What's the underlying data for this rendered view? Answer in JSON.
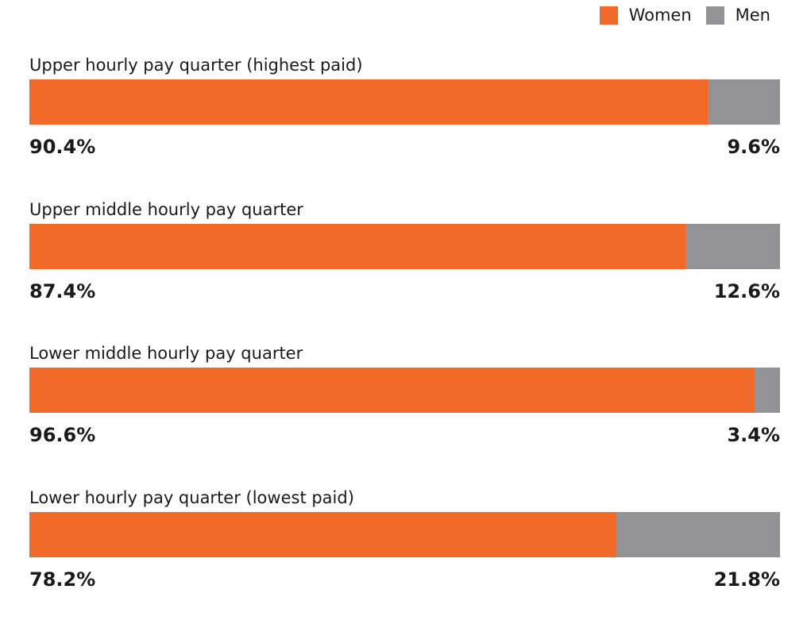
{
  "colors": {
    "women": "#F26A27",
    "men": "#939396"
  },
  "legend": {
    "women_label": "Women",
    "men_label": "Men"
  },
  "chart_data": {
    "type": "bar",
    "orientation": "horizontal",
    "stacked": true,
    "normalized_percent": true,
    "legend_position": "top-right",
    "categories": [
      "Upper hourly pay quarter (highest paid)",
      "Upper middle hourly pay quarter",
      "Lower middle hourly pay quarter",
      "Lower hourly pay quarter (lowest paid)"
    ],
    "series": [
      {
        "name": "Women",
        "values": [
          90.4,
          87.4,
          96.6,
          78.2
        ]
      },
      {
        "name": "Men",
        "values": [
          9.6,
          12.6,
          3.4,
          21.8
        ]
      }
    ],
    "value_labels": {
      "women": [
        "90.4%",
        "87.4%",
        "96.6%",
        "78.2%"
      ],
      "men": [
        "9.6%",
        "12.6%",
        "3.4%",
        "21.8%"
      ]
    }
  }
}
